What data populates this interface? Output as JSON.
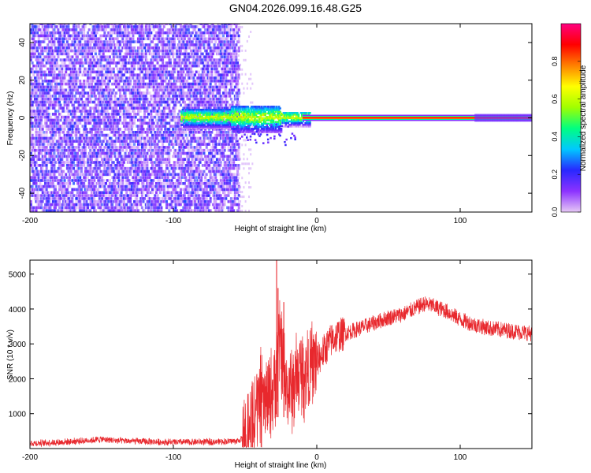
{
  "title": "GN04.2026.099.16.48.G25",
  "chart_data": [
    {
      "type": "heatmap",
      "name": "spectrogram",
      "xlabel": "Height of straight line (km)",
      "ylabel": "Frequency (Hz)",
      "xlim": [
        -200,
        150
      ],
      "ylim": [
        -50,
        50
      ],
      "xticks": [
        -200,
        -100,
        0,
        100
      ],
      "yticks": [
        -40,
        -20,
        0,
        20,
        40
      ],
      "features": {
        "noise_region_x": [
          -200,
          -55
        ],
        "transition_region_x": [
          -95,
          -5
        ],
        "carrier_line_freq": 0,
        "carrier_line_x": [
          -10,
          150
        ],
        "noise_amplitude_range": [
          0.0,
          0.25
        ],
        "carrier_amplitude": 0.9
      },
      "colorbar": {
        "label": "Normalized spectral amplitude",
        "ticks": [
          0.0,
          0.2,
          0.4,
          0.6,
          0.8
        ],
        "range": [
          0,
          1
        ],
        "colors": [
          "#e6c8f5",
          "#8c32ff",
          "#2828ff",
          "#00c8ff",
          "#00ff80",
          "#a0ff00",
          "#ffff00",
          "#ff8000",
          "#ff0000",
          "#ff0080"
        ]
      }
    },
    {
      "type": "line",
      "name": "snr",
      "xlabel": "Height of straight line (km)",
      "ylabel": "SNR (10 * v/v)",
      "xlim": [
        -200,
        150
      ],
      "ylim": [
        0,
        5400
      ],
      "xticks": [
        -200,
        -100,
        0,
        100
      ],
      "yticks": [
        1000,
        2000,
        3000,
        4000,
        5000
      ],
      "color": "#e8282d",
      "series": [
        {
          "name": "SNR",
          "x": [
            -200,
            -180,
            -160,
            -150,
            -140,
            -120,
            -100,
            -80,
            -65,
            -55,
            -50,
            -45,
            -40,
            -35,
            -30,
            -28,
            -25,
            -22,
            -20,
            -15,
            -12,
            -10,
            -5,
            0,
            5,
            10,
            15,
            20,
            30,
            40,
            50,
            60,
            70,
            75,
            80,
            90,
            100,
            110,
            120,
            130,
            140,
            150
          ],
          "values": [
            150,
            180,
            230,
            270,
            230,
            200,
            180,
            190,
            200,
            220,
            330,
            800,
            1400,
            1300,
            1700,
            2500,
            3000,
            1800,
            1600,
            1900,
            2100,
            2200,
            2300,
            2500,
            2800,
            3100,
            3250,
            3300,
            3450,
            3600,
            3750,
            3850,
            4050,
            4150,
            4100,
            3950,
            3700,
            3550,
            3450,
            3400,
            3350,
            3300
          ]
        }
      ],
      "spikes": [
        {
          "x": -28,
          "value": 5400
        },
        {
          "x": -27,
          "value": 4600
        },
        {
          "x": -23,
          "value": 4200
        }
      ]
    }
  ]
}
